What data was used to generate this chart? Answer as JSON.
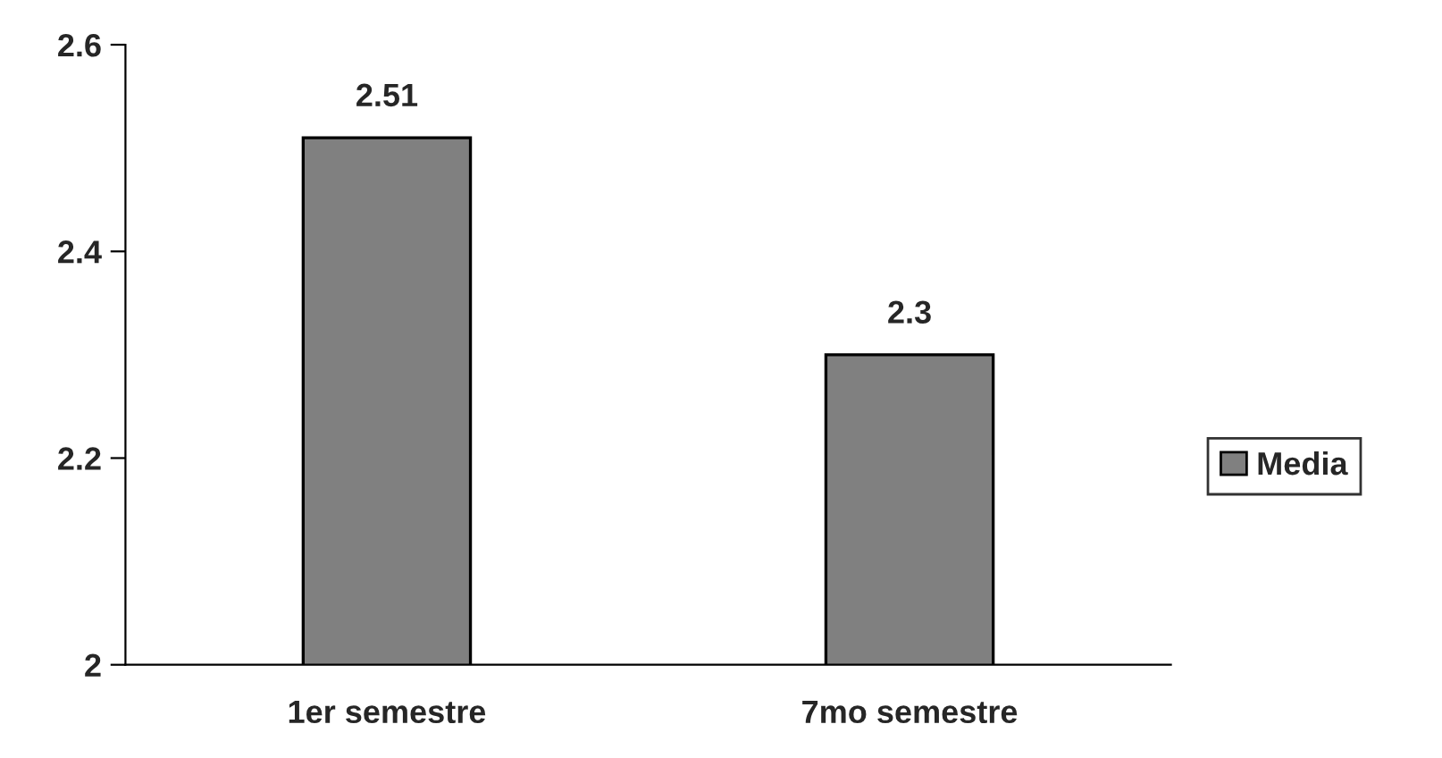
{
  "chart_data": {
    "type": "bar",
    "categories": [
      "1er semestre",
      "7mo semestre"
    ],
    "series": [
      {
        "name": "Media",
        "color": "#808080",
        "values": [
          2.51,
          2.3
        ]
      }
    ],
    "ylim": [
      2,
      2.6
    ],
    "yticks": [
      2,
      {
        "value": 2.2,
        "label": "2.2"
      },
      {
        "value": 2.4,
        "label": "2.4"
      },
      {
        "value": 2.6,
        "label": "2.6"
      }
    ],
    "data_labels": true,
    "grid": false,
    "legend": "right"
  }
}
